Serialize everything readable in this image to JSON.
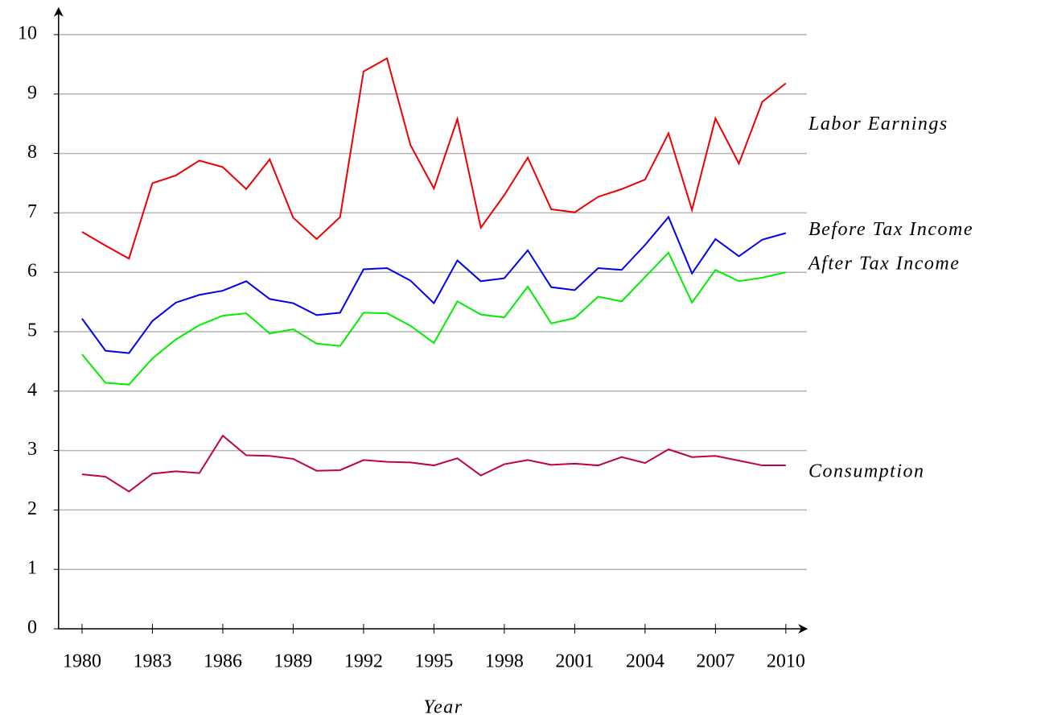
{
  "chart_data": {
    "type": "line",
    "x_label": "Year",
    "x": [
      1980,
      1981,
      1982,
      1983,
      1984,
      1985,
      1986,
      1987,
      1988,
      1989,
      1990,
      1991,
      1992,
      1993,
      1994,
      1995,
      1996,
      1997,
      1998,
      1999,
      2000,
      2001,
      2002,
      2003,
      2004,
      2005,
      2006,
      2007,
      2008,
      2009,
      2010
    ],
    "series": [
      {
        "name": "Labor Earnings",
        "color": "#ee0000",
        "values": [
          6.68,
          6.45,
          6.23,
          7.5,
          7.63,
          7.88,
          7.77,
          7.4,
          7.9,
          6.92,
          6.56,
          6.93,
          9.38,
          9.6,
          8.14,
          7.41,
          8.58,
          6.75,
          7.3,
          7.93,
          7.06,
          7.01,
          7.27,
          7.4,
          7.56,
          8.34,
          7.05,
          8.59,
          7.83,
          8.87,
          9.18
        ]
      },
      {
        "name": "Before Tax Income",
        "color": "#0000ee",
        "values": [
          5.22,
          4.68,
          4.64,
          5.18,
          5.49,
          5.62,
          5.69,
          5.85,
          5.55,
          5.48,
          5.28,
          5.32,
          6.05,
          6.07,
          5.86,
          5.48,
          6.2,
          5.85,
          5.9,
          6.37,
          5.75,
          5.7,
          6.07,
          6.04,
          6.46,
          6.93,
          5.98,
          6.56,
          6.27,
          6.55,
          6.66
        ]
      },
      {
        "name": "After Tax Income",
        "color": "#00ee00",
        "values": [
          4.62,
          4.14,
          4.11,
          4.55,
          4.87,
          5.11,
          5.27,
          5.31,
          4.97,
          5.04,
          4.8,
          4.76,
          5.32,
          5.31,
          5.1,
          4.81,
          5.51,
          5.29,
          5.24,
          5.76,
          5.14,
          5.23,
          5.59,
          5.51,
          5.92,
          6.33,
          5.49,
          6.04,
          5.85,
          5.91,
          6.0
        ]
      },
      {
        "name": "Consumption",
        "color": "#c0004f",
        "values": [
          2.6,
          2.56,
          2.31,
          2.61,
          2.65,
          2.62,
          3.25,
          2.92,
          2.91,
          2.86,
          2.66,
          2.67,
          2.84,
          2.81,
          2.8,
          2.75,
          2.87,
          2.58,
          2.77,
          2.84,
          2.76,
          2.78,
          2.75,
          2.89,
          2.79,
          3.02,
          2.89,
          2.91,
          2.83,
          2.75,
          2.75
        ]
      }
    ],
    "xlim": [
      1979,
      2011
    ],
    "xticks": [
      1980,
      1983,
      1986,
      1989,
      1992,
      1995,
      1998,
      2001,
      2004,
      2007,
      2010
    ],
    "ylim": [
      0,
      10
    ],
    "yticks": [
      0,
      1,
      2,
      3,
      4,
      5,
      6,
      7,
      8,
      9,
      10
    ],
    "grid": true
  }
}
